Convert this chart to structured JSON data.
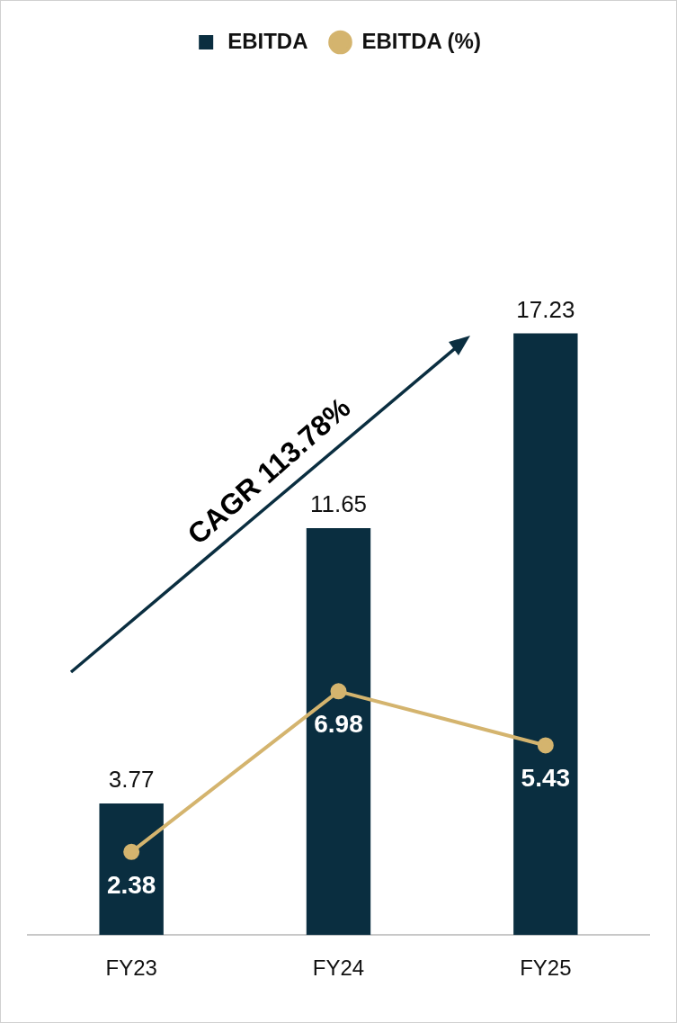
{
  "chart_data": {
    "type": "bar",
    "categories": [
      "FY23",
      "FY24",
      "FY25"
    ],
    "series": [
      {
        "name": "EBITDA",
        "color": "#0a2e40",
        "values": [
          3.77,
          11.65,
          17.23
        ]
      },
      {
        "name": "EBITDA (%)",
        "type": "line",
        "color": "#d4b46e",
        "values": [
          2.38,
          6.98,
          5.43
        ]
      }
    ],
    "data_labels": true,
    "legend": "top",
    "grid": false,
    "marker": "circle",
    "line_style": "solid",
    "tick_labels": "x",
    "annotations": [
      "CAGR 113.78%"
    ]
  }
}
